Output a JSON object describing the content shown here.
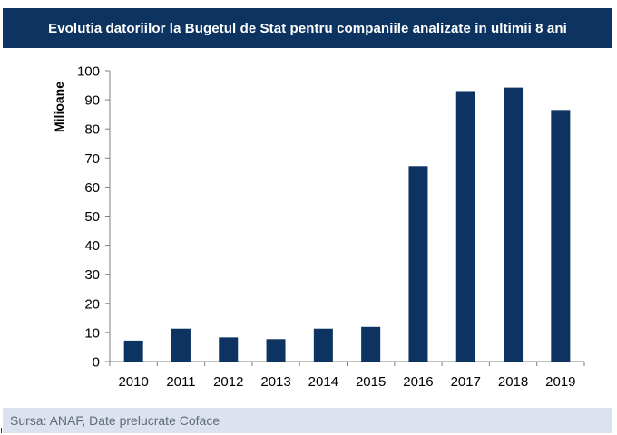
{
  "header": {
    "title": "Evolutia datoriilor la Bugetul de Stat pentru companiile analizate in ultimii 8 ani"
  },
  "footer": {
    "source": "Sursa: ANAF, Date prelucrate Coface"
  },
  "colors": {
    "title_bg": "#0d3461",
    "bar": "#0d3461",
    "footer_bg": "#dde3ee",
    "footer_text": "#5f6a7a"
  },
  "chart_data": {
    "type": "bar",
    "title": "Evolutia datoriilor la Bugetul de Stat pentru companiile analizate in ultimii 8 ani",
    "xlabel": "",
    "ylabel": "Milioane",
    "categories": [
      "2010",
      "2011",
      "2012",
      "2013",
      "2014",
      "2015",
      "2016",
      "2017",
      "2018",
      "2019"
    ],
    "values": [
      7.2,
      11.3,
      8.3,
      7.7,
      11.3,
      11.9,
      67.2,
      93.0,
      94.2,
      86.5
    ],
    "ylim": [
      0,
      100
    ],
    "yticks": [
      "0",
      "10",
      "20",
      "30",
      "40",
      "50",
      "60",
      "70",
      "80",
      "90",
      "100"
    ],
    "grid": false,
    "legend": "none"
  }
}
